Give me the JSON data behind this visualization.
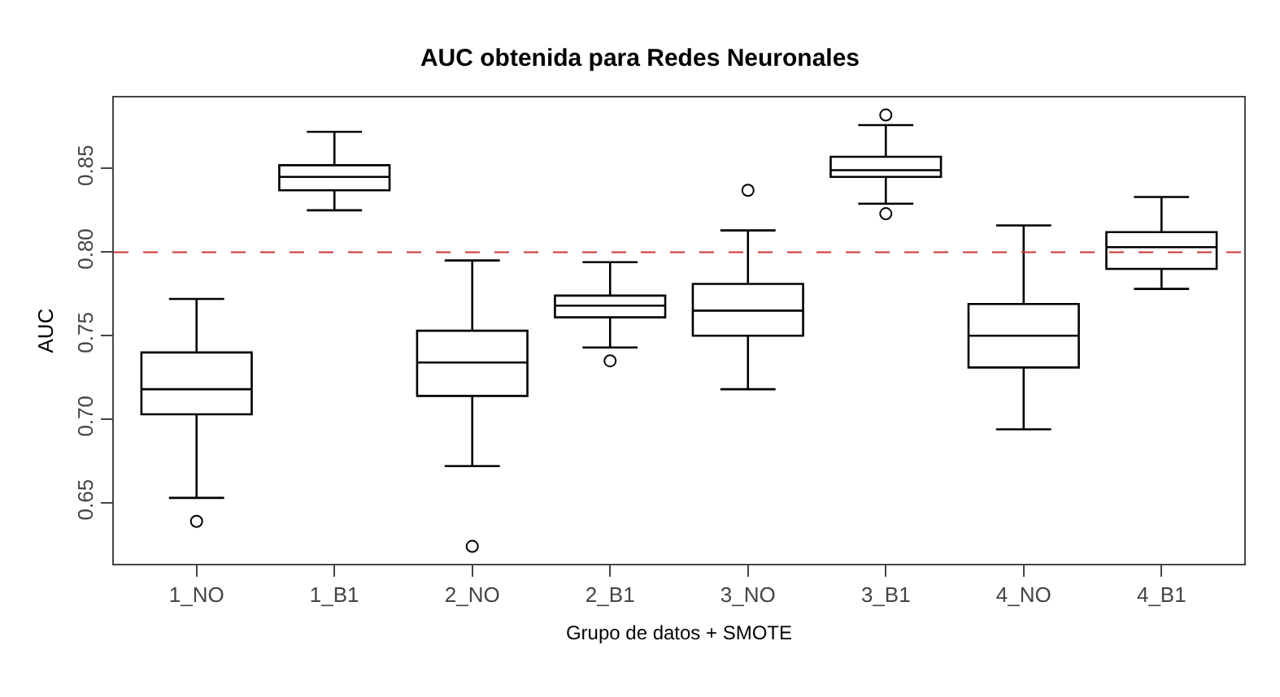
{
  "chart_data": {
    "type": "box",
    "title": "AUC obtenida para Redes Neuronales",
    "xlabel": "Grupo de datos + SMOTE",
    "ylabel": "AUC",
    "categories": [
      "1_NO",
      "1_B1",
      "2_NO",
      "2_B1",
      "3_NO",
      "3_B1",
      "4_NO",
      "4_B1"
    ],
    "boxes": [
      {
        "low": 0.653,
        "q1": 0.703,
        "median": 0.718,
        "q3": 0.74,
        "high": 0.772,
        "outliers": [
          0.639
        ]
      },
      {
        "low": 0.825,
        "q1": 0.837,
        "median": 0.845,
        "q3": 0.852,
        "high": 0.872
      },
      {
        "low": 0.672,
        "q1": 0.714,
        "median": 0.734,
        "q3": 0.753,
        "high": 0.795,
        "outliers": [
          0.624
        ]
      },
      {
        "low": 0.743,
        "q1": 0.761,
        "median": 0.768,
        "q3": 0.774,
        "high": 0.794,
        "outliers": [
          0.735
        ]
      },
      {
        "low": 0.718,
        "q1": 0.75,
        "median": 0.765,
        "q3": 0.781,
        "high": 0.813,
        "outliers": [
          0.837
        ]
      },
      {
        "low": 0.829,
        "q1": 0.845,
        "median": 0.849,
        "q3": 0.857,
        "high": 0.876,
        "outliers": [
          0.882,
          0.823
        ]
      },
      {
        "low": 0.694,
        "q1": 0.731,
        "median": 0.75,
        "q3": 0.769,
        "high": 0.816
      },
      {
        "low": 0.778,
        "q1": 0.79,
        "median": 0.803,
        "q3": 0.812,
        "high": 0.833
      }
    ],
    "color": "#000000",
    "ylim": [
      0.6136,
      0.8925
    ],
    "yticks": [
      0.65,
      {
        "value": 0.7,
        "label": "0.70"
      },
      0.75,
      {
        "value": 0.8,
        "label": "0.80"
      },
      0.85
    ],
    "ref_lines": [
      {
        "axis": "y",
        "value": 0.8,
        "color": "#cc3333",
        "line_style": "dashed"
      }
    ]
  }
}
